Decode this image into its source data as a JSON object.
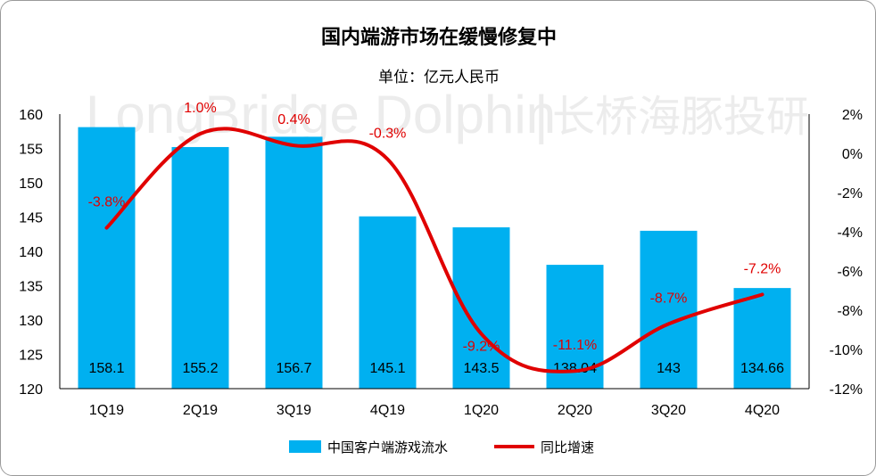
{
  "chart_data": {
    "type": "bar",
    "title": "国内端游市场在缓慢修复中",
    "subtitle": "单位：亿元人民币",
    "categories": [
      "1Q19",
      "2Q19",
      "3Q19",
      "4Q19",
      "1Q20",
      "2Q20",
      "3Q20",
      "4Q20"
    ],
    "series": [
      {
        "name": "中国客户端游戏流水",
        "type": "bar",
        "axis": "left",
        "color": "#00b0f0",
        "values": [
          158.1,
          155.2,
          156.7,
          145.1,
          143.5,
          138.04,
          143,
          134.66
        ],
        "labels": [
          "158.1",
          "155.2",
          "156.7",
          "145.1",
          "143.5",
          "138.04",
          "143",
          "134.66"
        ]
      },
      {
        "name": "同比增速",
        "type": "line",
        "axis": "right",
        "color": "#e00000",
        "values": [
          -3.8,
          1.0,
          0.4,
          -0.3,
          -9.2,
          -11.1,
          -8.7,
          -7.2
        ],
        "labels": [
          "-3.8%",
          "1.0%",
          "0.4%",
          "-0.3%",
          "-9.2%",
          "-11.1%",
          "-8.7%",
          "-7.2%"
        ]
      }
    ],
    "ylim": [
      120,
      160
    ],
    "yticks": [
      "160",
      "155",
      "150",
      "145",
      "140",
      "135",
      "130",
      "125",
      "120"
    ],
    "y2lim": [
      -12,
      2
    ],
    "y2ticks": [
      "2%",
      "0%",
      "-2%",
      "-4%",
      "-6%",
      "-8%",
      "-10%",
      "-12%"
    ],
    "grid": false,
    "legend": "bottom"
  },
  "watermark": {
    "latin": "LongBridge Dolphin",
    "separator": "|",
    "cn": "长桥海豚投研"
  }
}
